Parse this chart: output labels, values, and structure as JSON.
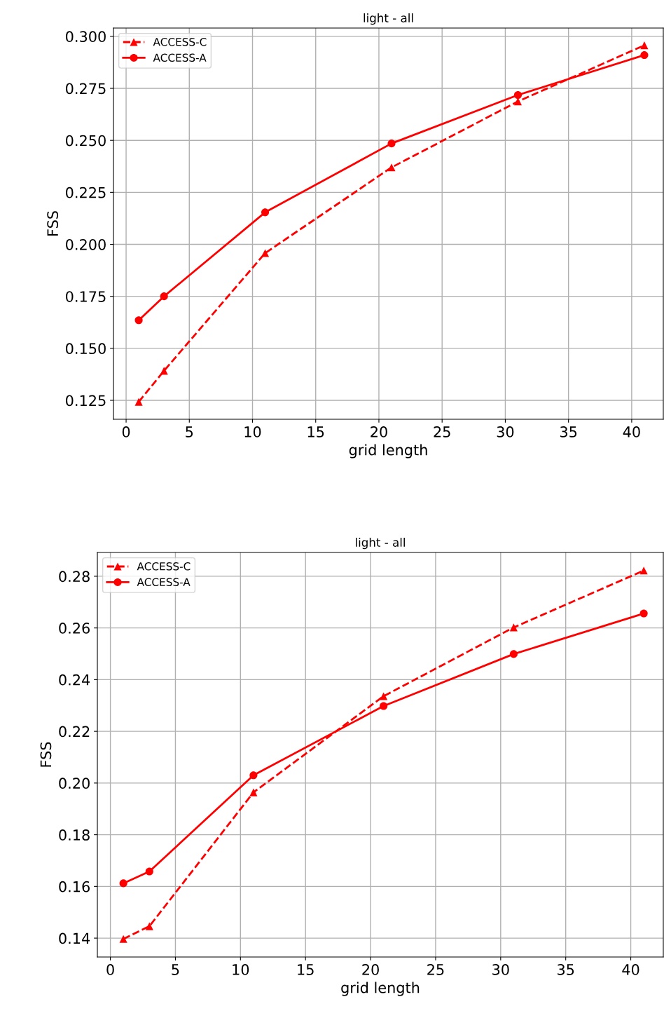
{
  "chart_data": [
    {
      "type": "line",
      "title": "light - all",
      "xlabel": "grid length",
      "ylabel": "FSS",
      "x": [
        1,
        3,
        11,
        21,
        31,
        41
      ],
      "xlim": [
        -1,
        42.5
      ],
      "xticks": [
        0,
        5,
        10,
        15,
        20,
        25,
        30,
        35,
        40
      ],
      "ylim": [
        0.1159,
        0.304
      ],
      "yticks": [
        {
          "value": 0.125,
          "label": "0.125"
        },
        {
          "value": 0.15,
          "label": "0.150"
        },
        {
          "value": 0.175,
          "label": "0.175"
        },
        {
          "value": 0.2,
          "label": "0.200"
        },
        {
          "value": 0.225,
          "label": "0.225"
        },
        {
          "value": 0.25,
          "label": "0.250"
        },
        {
          "value": 0.275,
          "label": "0.275"
        },
        {
          "value": 0.3,
          "label": "0.300"
        }
      ],
      "grid": true,
      "legend": "top left",
      "series": [
        {
          "name": "ACCESS-C",
          "color": "#ff0000",
          "marker": "triangle",
          "line_style": "dashed",
          "values": [
            0.1243,
            0.1392,
            0.1958,
            0.237,
            0.2687,
            0.2957
          ]
        },
        {
          "name": "ACCESS-A",
          "color": "#ff0000",
          "marker": "circle",
          "line_style": "solid",
          "values": [
            0.1635,
            0.175,
            0.2154,
            0.2485,
            0.2718,
            0.291
          ]
        }
      ]
    },
    {
      "type": "line",
      "title": "light - all",
      "xlabel": "grid length",
      "ylabel": "FSS",
      "x": [
        1,
        3,
        11,
        21,
        31,
        41
      ],
      "xlim": [
        -1,
        42.5
      ],
      "xticks": [
        0,
        5,
        10,
        15,
        20,
        25,
        30,
        35,
        40
      ],
      "ylim": [
        0.1327,
        0.2892
      ],
      "yticks": [
        {
          "value": 0.14,
          "label": "0.14"
        },
        {
          "value": 0.16,
          "label": "0.16"
        },
        {
          "value": 0.18,
          "label": "0.18"
        },
        {
          "value": 0.2,
          "label": "0.20"
        },
        {
          "value": 0.22,
          "label": "0.22"
        },
        {
          "value": 0.24,
          "label": "0.24"
        },
        {
          "value": 0.26,
          "label": "0.26"
        },
        {
          "value": 0.28,
          "label": "0.28"
        }
      ],
      "grid": true,
      "legend": "top left",
      "series": [
        {
          "name": "ACCESS-C",
          "color": "#ff0000",
          "marker": "triangle",
          "line_style": "dashed",
          "values": [
            0.1397,
            0.1446,
            0.1964,
            0.2336,
            0.2602,
            0.2822
          ]
        },
        {
          "name": "ACCESS-A",
          "color": "#ff0000",
          "marker": "circle",
          "line_style": "solid",
          "values": [
            0.1612,
            0.1658,
            0.203,
            0.2298,
            0.2499,
            0.2656
          ]
        }
      ]
    }
  ]
}
